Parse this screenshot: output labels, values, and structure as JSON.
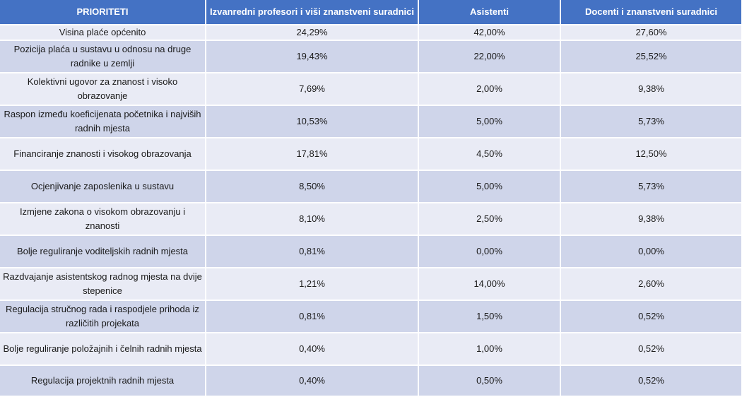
{
  "table": {
    "headers": [
      "PRIORITETI",
      "Izvanredni profesori i viši znanstveni suradnici",
      "Asistenti",
      "Docenti i znanstveni suradnici"
    ],
    "rows": [
      [
        "Visina plaće općenito",
        "24,29%",
        "42,00%",
        "27,60%"
      ],
      [
        "Pozicija plaća u sustavu u odnosu na druge radnike u zemlji",
        "19,43%",
        "22,00%",
        "25,52%"
      ],
      [
        "Kolektivni ugovor za znanost i visoko obrazovanje",
        "7,69%",
        "2,00%",
        "9,38%"
      ],
      [
        "Raspon između koeficijenata početnika i najviših radnih mjesta",
        "10,53%",
        "5,00%",
        "5,73%"
      ],
      [
        "Financiranje znanosti i visokog obrazovanja",
        "17,81%",
        "4,50%",
        "12,50%"
      ],
      [
        "Ocjenjivanje zaposlenika u sustavu",
        "8,50%",
        "5,00%",
        "5,73%"
      ],
      [
        "Izmjene zakona o visokom obrazovanju i znanosti",
        "8,10%",
        "2,50%",
        "9,38%"
      ],
      [
        "Bolje reguliranje voditeljskih radnih mjesta",
        "0,81%",
        "0,00%",
        "0,00%"
      ],
      [
        "Razdvajanje asistentskog radnog mjesta na dvije stepenice",
        "1,21%",
        "14,00%",
        "2,60%"
      ],
      [
        "Regulacija stručnog rada i raspodjele prihoda iz različitih projekata",
        "0,81%",
        "1,50%",
        "0,52%"
      ],
      [
        "Bolje reguliranje položajnih i čelnih radnih mjesta",
        "0,40%",
        "1,00%",
        "0,52%"
      ],
      [
        "Regulacija projektnih radnih mjesta",
        "0,40%",
        "0,50%",
        "0,52%"
      ]
    ]
  },
  "colors": {
    "header_background": "#4472c4",
    "header_text": "#ffffff",
    "row_dark": "#cfd5ea",
    "row_light": "#e9ebf5"
  }
}
